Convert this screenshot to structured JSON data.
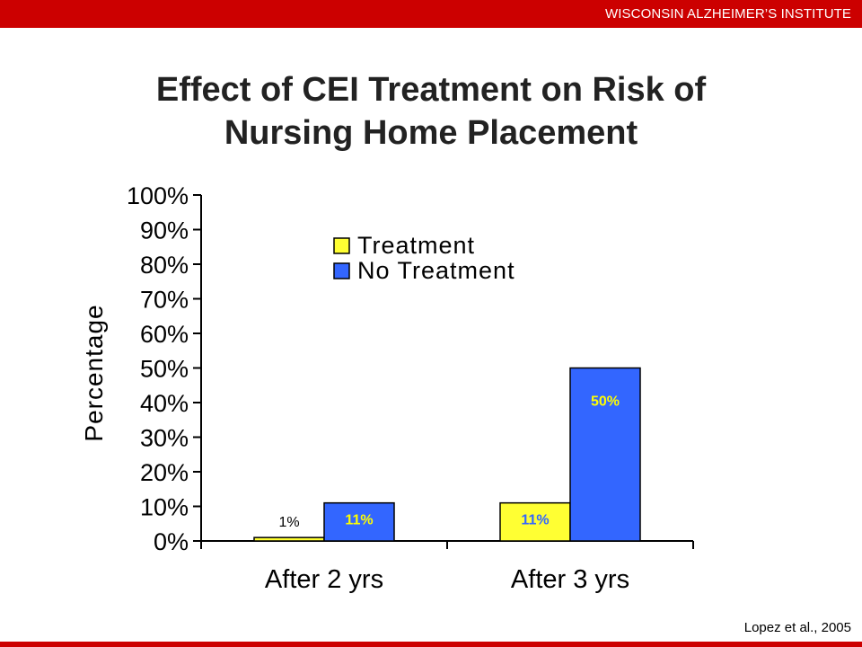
{
  "header": {
    "institute": "WISCONSIN ALZHEIMER’S INSTITUTE"
  },
  "slide": {
    "title_line1": "Effect of CEI Treatment on Risk of",
    "title_line2": "Nursing Home Placement"
  },
  "footer": {
    "citation": "Lopez et al., 2005"
  },
  "colors": {
    "brand_red": "#cc0000",
    "treatment": "#ffff33",
    "no_treatment": "#3366ff",
    "value_label_blue": "#ffff00",
    "value_label_yellow": "#3366ff"
  },
  "chart_data": {
    "type": "bar",
    "title": "",
    "xlabel": "",
    "ylabel": "Percentage",
    "ylim": [
      0,
      100
    ],
    "y_ticks": [
      0,
      10,
      20,
      30,
      40,
      50,
      60,
      70,
      80,
      90,
      100
    ],
    "y_tick_labels": [
      "0%",
      "10%",
      "20%",
      "30%",
      "40%",
      "50%",
      "60%",
      "70%",
      "80%",
      "90%",
      "100%"
    ],
    "categories": [
      "After 2 yrs",
      "After 3 yrs"
    ],
    "series": [
      {
        "name": "Treatment",
        "values": [
          1,
          11
        ],
        "labels": [
          "1%",
          "11%"
        ]
      },
      {
        "name": "No Treatment",
        "values": [
          11,
          50
        ],
        "labels": [
          "11%",
          "50%"
        ]
      }
    ],
    "legend_position": "top-center",
    "grid": false
  }
}
